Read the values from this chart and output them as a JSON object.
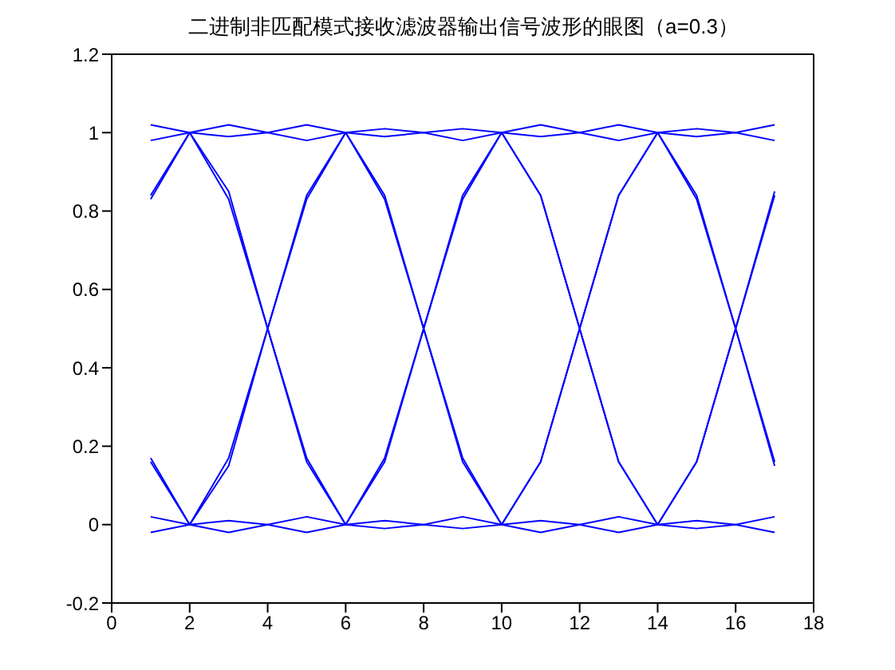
{
  "chart_data": {
    "type": "line",
    "title": "二进制非匹配模式接收滤波器输出信号波形的眼图（a=0.3）",
    "x": [
      1,
      2,
      3,
      4,
      5,
      6,
      7,
      8,
      9,
      10,
      11,
      12,
      13,
      14,
      15,
      16,
      17
    ],
    "series": [
      {
        "color": "#0000ff",
        "values": [
          0.83,
          1,
          0.85,
          0.5,
          0.16,
          0,
          0.16,
          0.5,
          0.84,
          1,
          0.84,
          0.5,
          0.16,
          0,
          0.16,
          0.5,
          0.85
        ]
      },
      {
        "color": "#0000ff",
        "values": [
          0.17,
          0,
          0.15,
          0.5,
          0.84,
          1,
          0.84,
          0.5,
          0.16,
          0,
          0.16,
          0.5,
          0.84,
          1,
          0.84,
          0.5,
          0.15
        ]
      },
      {
        "color": "#0000ff",
        "values": [
          1.02,
          1,
          0.83,
          0.5,
          0.17,
          0,
          -0.01,
          0,
          -0.01,
          0,
          0.16,
          0.5,
          0.84,
          1,
          1.01,
          1,
          1.02
        ]
      },
      {
        "color": "#0000ff",
        "values": [
          -0.02,
          0,
          0.17,
          0.5,
          0.83,
          1,
          1.01,
          1,
          1.01,
          1,
          0.84,
          0.5,
          0.16,
          0,
          -0.01,
          0,
          -0.02
        ]
      },
      {
        "color": "#0000ff",
        "values": [
          0.84,
          1,
          1.02,
          1,
          1.02,
          1,
          0.83,
          0.5,
          0.17,
          0,
          -0.02,
          0,
          -0.02,
          0,
          0.16,
          0.5,
          0.84
        ]
      },
      {
        "color": "#0000ff",
        "values": [
          0.16,
          0,
          -0.02,
          0,
          -0.02,
          0,
          0.17,
          0.5,
          0.83,
          1,
          1.02,
          1,
          1.02,
          1,
          0.83,
          0.5,
          0.16
        ]
      },
      {
        "color": "#0000ff",
        "values": [
          0.98,
          1,
          0.99,
          1,
          0.98,
          1,
          0.99,
          1,
          0.98,
          1,
          0.99,
          1,
          0.98,
          1,
          0.99,
          1,
          0.98
        ]
      },
      {
        "color": "#0000ff",
        "values": [
          0.02,
          0,
          0.01,
          0,
          0.02,
          0,
          0.01,
          0,
          0.02,
          0,
          0.01,
          0,
          0.02,
          0,
          0.01,
          0,
          0.02
        ]
      }
    ],
    "xlim": [
      0,
      18
    ],
    "xticks": [
      0,
      2,
      4,
      6,
      8,
      10,
      12,
      14,
      16,
      18
    ],
    "ylim": [
      -0.2,
      1.2
    ],
    "yticks": [
      -0.2,
      0,
      0.2,
      0.4,
      0.6,
      0.8,
      1,
      1.2
    ],
    "grid": false,
    "marker": "none",
    "line_style": "solid"
  }
}
